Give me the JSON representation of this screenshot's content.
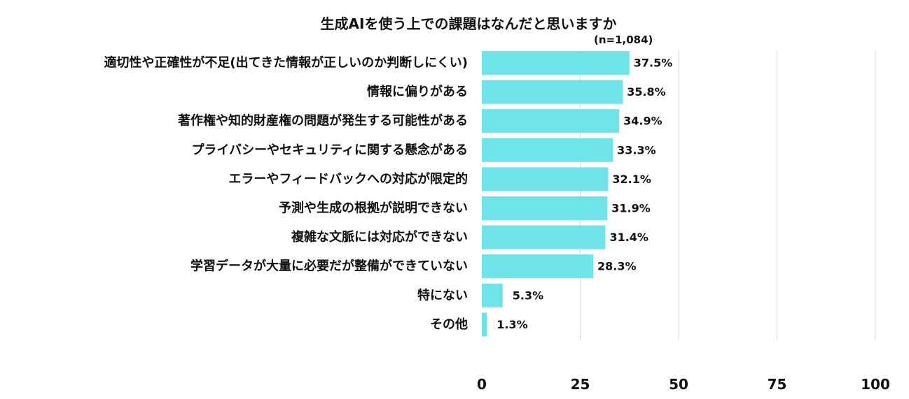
{
  "chart_data": {
    "type": "bar",
    "orientation": "horizontal",
    "title": "生成AIを使う上での課題はなんだと思いますか",
    "note": "(n=1,084)",
    "categories": [
      "適切性や正確性が不足(出てきた情報が正しいのか判断しにくい)",
      "情報に偏りがある",
      "著作権や知的財産権の問題が発生する可能性がある",
      "プライバシーやセキュリティに関する懸念がある",
      "エラーやフィードバックへの対応が限定的",
      "予測や生成の根拠が説明できない",
      "複雑な文脈には対応ができない",
      "学習データが大量に必要だが整備ができていない",
      "特にない",
      "その他"
    ],
    "values": [
      37.5,
      35.8,
      34.9,
      33.3,
      32.1,
      31.9,
      31.4,
      28.3,
      5.3,
      1.3
    ],
    "value_labels": [
      "37.5%",
      "35.8%",
      "34.9%",
      "33.3%",
      "32.1%",
      "31.9%",
      "31.4%",
      "28.3%",
      "5.3%",
      "1.3%"
    ],
    "xlim": [
      0,
      100
    ],
    "xticks": [
      "0",
      "25",
      "50",
      "75",
      "100"
    ],
    "grid": true,
    "bar_color": "#6ee3e8",
    "grid_color": "#d9d9d9"
  }
}
